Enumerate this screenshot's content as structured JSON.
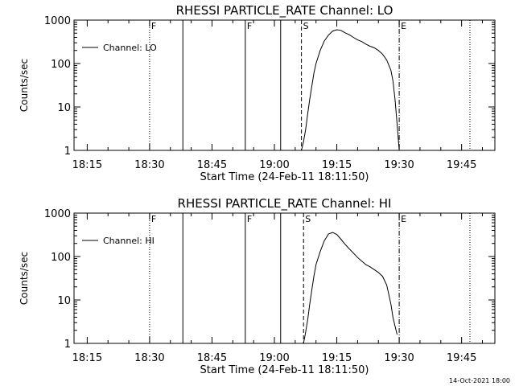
{
  "footer": {
    "timestamp": "14-Oct-2021 18:00"
  },
  "chart_data": [
    {
      "type": "line",
      "title": "RHESSI PARTICLE_RATE Channel: LO",
      "xlabel": "Start Time (24-Feb-11 18:11:50)",
      "ylabel": "Counts/sec",
      "yscale": "log",
      "ylim": [
        1,
        1000
      ],
      "xlim": [
        "18:11:50",
        "19:53:00"
      ],
      "x_ticks": [
        "18:15",
        "18:30",
        "18:45",
        "19:00",
        "19:15",
        "19:30",
        "19:45"
      ],
      "y_ticks": [
        "1",
        "10",
        "100",
        "1000"
      ],
      "legend": {
        "placement": "top-left",
        "entries": [
          "Channel: LO"
        ]
      },
      "grid": false,
      "series": [
        {
          "name": "Channel: LO",
          "x": [
            "19:06:30",
            "19:07:00",
            "19:07:30",
            "19:08:00",
            "19:08:30",
            "19:09:00",
            "19:09:30",
            "19:10:00",
            "19:11:00",
            "19:12:00",
            "19:13:00",
            "19:14:00",
            "19:15:00",
            "19:16:00",
            "19:17:00",
            "19:18:00",
            "19:19:00",
            "19:20:00",
            "19:21:00",
            "19:22:00",
            "19:23:00",
            "19:24:00",
            "19:25:00",
            "19:26:00",
            "19:27:00",
            "19:28:00",
            "19:28:30",
            "19:29:00",
            "19:29:30",
            "19:30:00"
          ],
          "y": [
            1.0,
            1.6,
            3.0,
            7.0,
            15,
            30,
            60,
            100,
            200,
            330,
            450,
            560,
            600,
            580,
            510,
            460,
            400,
            350,
            320,
            280,
            250,
            230,
            200,
            165,
            120,
            70,
            40,
            15,
            4,
            1.0
          ]
        }
      ],
      "markers": [
        {
          "time": "18:30:00",
          "style": "dotted",
          "label": "F"
        },
        {
          "time": "18:38:00",
          "style": "solid",
          "label": ""
        },
        {
          "time": "18:53:00",
          "style": "solid",
          "label": "F"
        },
        {
          "time": "19:01:30",
          "style": "solid",
          "label": ""
        },
        {
          "time": "19:06:30",
          "style": "dashed",
          "label": "S"
        },
        {
          "time": "19:30:00",
          "style": "dashdot",
          "label": "E"
        },
        {
          "time": "19:47:00",
          "style": "dotted",
          "label": ""
        }
      ]
    },
    {
      "type": "line",
      "title": "RHESSI PARTICLE_RATE Channel: HI",
      "xlabel": "Start Time (24-Feb-11 18:11:50)",
      "ylabel": "Counts/sec",
      "yscale": "log",
      "ylim": [
        1,
        1000
      ],
      "xlim": [
        "18:11:50",
        "19:53:00"
      ],
      "x_ticks": [
        "18:15",
        "18:30",
        "18:45",
        "19:00",
        "19:15",
        "19:30",
        "19:45"
      ],
      "y_ticks": [
        "1",
        "10",
        "100",
        "1000"
      ],
      "legend": {
        "placement": "top-left",
        "entries": [
          "Channel: HI"
        ]
      },
      "grid": false,
      "series": [
        {
          "name": "Channel: HI",
          "x": [
            "19:07:00",
            "19:07:30",
            "19:08:00",
            "19:08:30",
            "19:09:00",
            "19:09:30",
            "19:10:00",
            "19:11:00",
            "19:12:00",
            "19:13:00",
            "19:14:00",
            "19:15:00",
            "19:16:00",
            "19:17:00",
            "19:18:00",
            "19:19:00",
            "19:20:00",
            "19:21:00",
            "19:22:00",
            "19:23:00",
            "19:24:00",
            "19:25:00",
            "19:26:00",
            "19:27:00",
            "19:28:00",
            "19:28:30",
            "19:29:00",
            "19:29:30"
          ],
          "y": [
            1.0,
            1.8,
            3.5,
            8,
            17,
            35,
            65,
            130,
            230,
            330,
            360,
            320,
            250,
            190,
            150,
            120,
            95,
            78,
            65,
            58,
            50,
            43,
            35,
            22,
            8,
            4,
            2.5,
            1.6
          ]
        }
      ],
      "markers": [
        {
          "time": "18:30:00",
          "style": "dotted",
          "label": "F"
        },
        {
          "time": "18:38:00",
          "style": "solid",
          "label": ""
        },
        {
          "time": "18:53:00",
          "style": "solid",
          "label": "F"
        },
        {
          "time": "19:01:30",
          "style": "solid",
          "label": ""
        },
        {
          "time": "19:07:00",
          "style": "dashed",
          "label": "S"
        },
        {
          "time": "19:30:00",
          "style": "dashdot",
          "label": "E"
        },
        {
          "time": "19:47:00",
          "style": "dotted",
          "label": ""
        }
      ]
    }
  ]
}
